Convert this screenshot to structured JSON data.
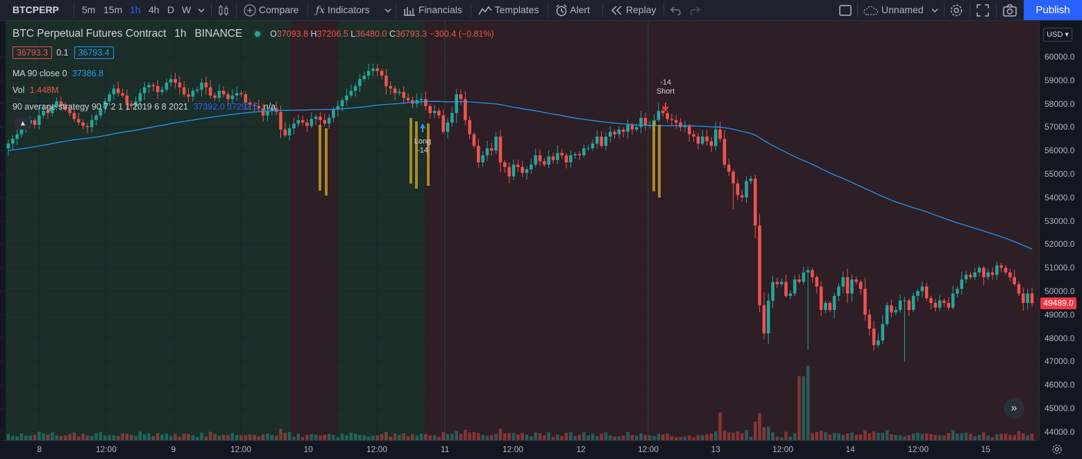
{
  "toolbar": {
    "symbol": "BTCPERP",
    "intervals": [
      "5m",
      "15m",
      "1h",
      "4h",
      "D",
      "W"
    ],
    "active_interval": "1h",
    "compare": "Compare",
    "indicators": "Indicators",
    "financials": "Financials",
    "templates": "Templates",
    "alert": "Alert",
    "replay": "Replay",
    "layout_name": "Unnamed",
    "publish": "Publish"
  },
  "legend": {
    "title": "BTC Perpetual Futures Contract",
    "interval": "1h",
    "exchange": "BINANCE",
    "o_label": "O",
    "o_val": "37093.8",
    "h_label": "H",
    "h_val": "37206.5",
    "l_label": "L",
    "l_val": "36480.0",
    "c_label": "C",
    "c_val": "36793.3",
    "change": "−300.4 (−0.81%)",
    "bid": "36793.3",
    "spread": "0.1",
    "ask": "36793.4",
    "ma_label": "MA 90 close 0",
    "ma_value": "37386.8",
    "vol_label": "Vol",
    "vol_value": "1.448M",
    "strategy_label": "90 average strategy 90 7 2 1 1 2019 6 8 2021",
    "strategy_values": "37392.0  37292.5",
    "strategy_na": "n/a"
  },
  "price_axis": {
    "currency": "USD",
    "ticks": [
      "60000.0",
      "59000.0",
      "58000.0",
      "57000.0",
      "56000.0",
      "55000.0",
      "54000.0",
      "53000.0",
      "52000.0",
      "51000.0",
      "50000.0",
      "49000.0",
      "48000.0",
      "47000.0",
      "46000.0",
      "45000.0",
      "44000.0"
    ],
    "last_price": "49489.0"
  },
  "time_axis": {
    "ticks": [
      "8",
      "12:00",
      "9",
      "12:00",
      "10",
      "12:00",
      "11",
      "12:00",
      "12",
      "12:00",
      "13",
      "12:00",
      "14",
      "12:00",
      "15"
    ]
  },
  "signals": [
    {
      "label": "Long",
      "qty": "-14"
    },
    {
      "label": "Short",
      "qty": "-14"
    }
  ],
  "colors": {
    "up": "#26a69a",
    "down": "#ef5350",
    "ma": "#2196f3",
    "long_zone": "#1b2e28",
    "short_zone": "#2e1e25",
    "signal_bar": "#c9a227",
    "accent": "#2962ff"
  },
  "chart_data": {
    "type": "candlestick",
    "series_name": "BTCPERP",
    "interval": "1h",
    "x_tick_labels": [
      "8",
      "12:00",
      "9",
      "12:00",
      "10",
      "12:00",
      "11",
      "12:00",
      "12",
      "12:00",
      "13",
      "12:00",
      "14",
      "12:00",
      "15"
    ],
    "ylim": [
      43800,
      60600
    ],
    "close_series": [
      56300,
      56500,
      56700,
      56900,
      57150,
      57300,
      57100,
      57500,
      57700,
      57600,
      57850,
      58100,
      57900,
      57750,
      57600,
      57350,
      57200,
      57050,
      57000,
      57300,
      57500,
      57800,
      58100,
      58400,
      58650,
      58450,
      58350,
      58000,
      57900,
      58100,
      58450,
      58700,
      58800,
      58750,
      58500,
      58600,
      58900,
      59050,
      58900,
      58700,
      58400,
      58300,
      58550,
      58600,
      58900,
      58700,
      58350,
      58250,
      58550,
      58400,
      58200,
      58350,
      58450,
      58400,
      58050,
      57950,
      57900,
      57800,
      57500,
      57700,
      57800,
      57650,
      56900,
      56650,
      56950,
      57150,
      57300,
      57200,
      57050,
      57350,
      57450,
      57300,
      57150,
      57400,
      57750,
      57900,
      58150,
      58350,
      58550,
      58750,
      59050,
      59200,
      59400,
      59500,
      59400,
      59200,
      58750,
      58650,
      58450,
      58500,
      58250,
      58150,
      58000,
      58150,
      58200,
      57900,
      57600,
      57700,
      57500,
      56800,
      57200,
      57600,
      58400,
      58200,
      57300,
      56700,
      56200,
      55500,
      55800,
      56100,
      56000,
      56600,
      55500,
      55300,
      54900,
      55400,
      55300,
      55050,
      55200,
      55400,
      55800,
      55550,
      55400,
      55750,
      55600,
      55900,
      55800,
      55500,
      55800,
      55850,
      55800,
      56100,
      56100,
      56300,
      56600,
      56200,
      56600,
      56800,
      56700,
      56900,
      56800,
      57100,
      56900,
      57000,
      57400,
      57100,
      57100,
      57300,
      57700,
      57600,
      57350,
      57300,
      57200,
      57000,
      57050,
      56700,
      56600,
      56300,
      56600,
      56400,
      56200,
      56900,
      56500,
      55400,
      55100,
      54600,
      54100,
      54000,
      54700,
      54800,
      52800,
      49400,
      48200,
      49600,
      50400,
      50300,
      50400,
      49800,
      49900,
      50500,
      50400,
      50800,
      50900,
      50600,
      50200,
      49200,
      49500,
      49200,
      49800,
      50200,
      50600,
      49900,
      50500,
      50400,
      50100,
      49000,
      48400,
      47700,
      47900,
      48600,
      49400,
      49100,
      49200,
      49600,
      49600,
      49200,
      49800,
      50000,
      50200,
      49700,
      49500,
      49300,
      49600,
      49500,
      49300,
      49900,
      50100,
      50500,
      50700,
      50600,
      50800,
      51000,
      50600,
      50800,
      50700,
      51100,
      51000,
      50800,
      50600,
      50300,
      49900,
      49500,
      49900,
      49489
    ],
    "ma_period": 90,
    "volume_unit": "relative"
  }
}
